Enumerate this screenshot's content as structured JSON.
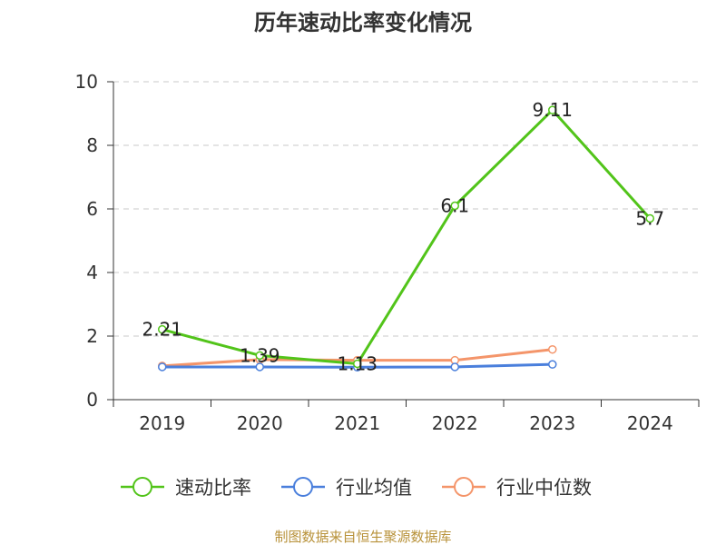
{
  "chart_data": {
    "type": "line",
    "title": "历年速动比率变化情况",
    "categories": [
      "2019",
      "2020",
      "2021",
      "2022",
      "2023",
      "2024"
    ],
    "ylim": [
      0,
      10
    ],
    "yticks": [
      "0",
      "2",
      "4",
      "6",
      "8",
      "10"
    ],
    "grid": true,
    "legend_position": "bottom",
    "series": [
      {
        "name": "速动比率",
        "color": "#52c41a",
        "values": [
          2.21,
          1.39,
          1.13,
          6.1,
          9.11,
          5.7
        ],
        "labels": [
          "2.21",
          "1.39",
          "1.13",
          "6.1",
          "9.11",
          "5.7"
        ]
      },
      {
        "name": "行业均值",
        "color": "#4a7fdc",
        "values": [
          1.03,
          1.03,
          1.02,
          1.03,
          1.11,
          null
        ]
      },
      {
        "name": "行业中位数",
        "color": "#f4956a",
        "values": [
          1.06,
          1.26,
          1.24,
          1.24,
          1.58,
          null
        ]
      }
    ]
  },
  "source": "制图数据来自恒生聚源数据库"
}
